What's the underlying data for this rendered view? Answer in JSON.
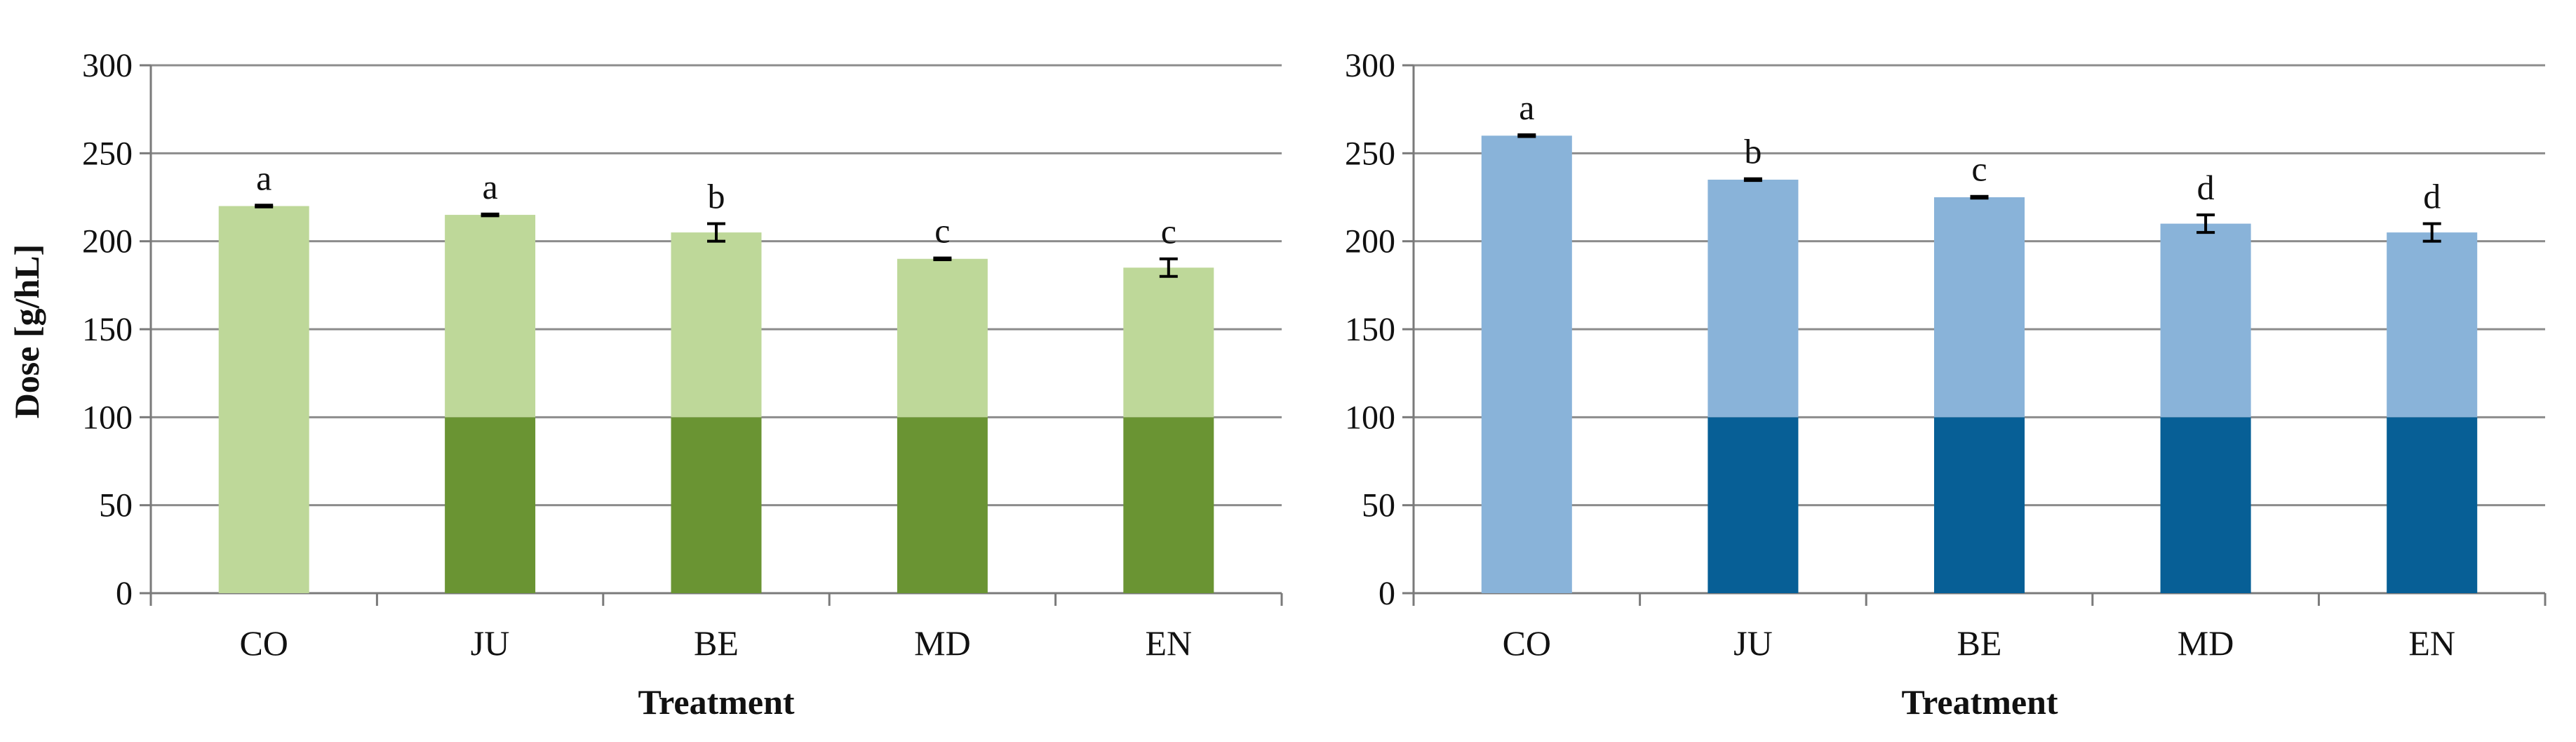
{
  "chart_data": [
    {
      "type": "bar",
      "stacked": true,
      "categories": [
        "CO",
        "JU",
        "BE",
        "MD",
        "EN"
      ],
      "series": [
        {
          "values": [
            0,
            100,
            100,
            100,
            100
          ],
          "color": "#6a9433"
        },
        {
          "values": [
            220,
            115,
            105,
            90,
            85
          ],
          "color": "#bed899"
        }
      ],
      "totals": [
        220,
        215,
        205,
        190,
        185
      ],
      "errors": [
        0.5,
        0.5,
        5,
        0.5,
        5
      ],
      "significance_letters": [
        "a",
        "a",
        "b",
        "c",
        "c"
      ],
      "xlabel": "Treatment",
      "ylabel": "Dose [g/hL]",
      "ylim": [
        0,
        300
      ],
      "yticks": [
        "0",
        "50",
        "100",
        "150",
        "200",
        "250",
        "300"
      ],
      "grid": true
    },
    {
      "type": "bar",
      "stacked": true,
      "categories": [
        "CO",
        "JU",
        "BE",
        "MD",
        "EN"
      ],
      "series": [
        {
          "values": [
            0,
            100,
            100,
            100,
            100
          ],
          "color": "#075f96"
        },
        {
          "values": [
            260,
            135,
            125,
            110,
            105
          ],
          "color": "#89b3d9"
        }
      ],
      "totals": [
        260,
        235,
        225,
        210,
        205
      ],
      "errors": [
        0.5,
        0.5,
        0.5,
        5,
        5
      ],
      "significance_letters": [
        "a",
        "b",
        "c",
        "d",
        "d"
      ],
      "xlabel": "Treatment",
      "ylabel": "",
      "ylim": [
        0,
        300
      ],
      "yticks": [
        "0",
        "50",
        "100",
        "150",
        "200",
        "250",
        "300"
      ],
      "grid": true
    }
  ]
}
